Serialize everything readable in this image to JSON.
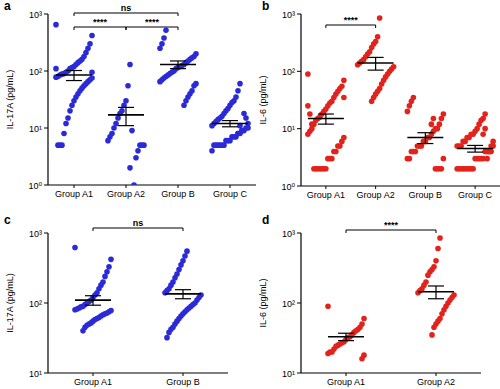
{
  "chart_data": [
    {
      "type": "scatter",
      "title": "a",
      "y_label": "IL-17A (pg/mL)",
      "color": "#2a2ad8",
      "log": "y",
      "ylim": [
        1,
        1000
      ],
      "yticks": [
        {
          "value": 1,
          "label": "10⁰"
        },
        {
          "value": 10,
          "label": "10¹"
        },
        {
          "value": 100,
          "label": "10²"
        },
        {
          "value": 1000,
          "label": "10³"
        }
      ],
      "categories": [
        "Group A1",
        "Group A2",
        "Group B",
        "Group C"
      ],
      "groups": [
        {
          "values": [
            650,
            420,
            300,
            250,
            210,
            180,
            160,
            150,
            140,
            130,
            120,
            115,
            110,
            100,
            95,
            90,
            88,
            85,
            80,
            78,
            75,
            70,
            65,
            60,
            55,
            50,
            45,
            40,
            35,
            30,
            25,
            20,
            15,
            12,
            8,
            5,
            5,
            5,
            110,
            95
          ],
          "mean": 85,
          "sem": 17
        },
        {
          "values": [
            130,
            55,
            30,
            25,
            20,
            18,
            15,
            12,
            10,
            8,
            7,
            6,
            5,
            5,
            5,
            4,
            3,
            1,
            9,
            2
          ],
          "mean": 17,
          "sem": 6
        },
        {
          "values": [
            520,
            380,
            300,
            250,
            200,
            180,
            170,
            160,
            150,
            140,
            130,
            125,
            120,
            115,
            110,
            100,
            95,
            90,
            85,
            80,
            75,
            70,
            65,
            60,
            55,
            45,
            40,
            35,
            30,
            25
          ],
          "mean": 130,
          "sem": 20
        },
        {
          "values": [
            60,
            45,
            35,
            30,
            28,
            25,
            22,
            20,
            18,
            16,
            15,
            14,
            13,
            12,
            11,
            10,
            10,
            9,
            9,
            8,
            8,
            7,
            7,
            7,
            6,
            6,
            6,
            5,
            5,
            5,
            5,
            5,
            5,
            4,
            12,
            15,
            18,
            9,
            11,
            8
          ],
          "mean": 12,
          "sem": 1.5
        }
      ],
      "annotations": [
        {
          "groups": [
            0,
            1
          ],
          "label": "****"
        },
        {
          "groups": [
            1,
            2
          ],
          "label": "****"
        },
        {
          "groups": [
            0,
            2
          ],
          "label": "ns"
        }
      ]
    },
    {
      "type": "scatter",
      "title": "b",
      "y_label": "IL-6 (pg/mL)",
      "color": "#e3231b",
      "log": "y",
      "ylim": [
        1,
        1000
      ],
      "yticks": [
        {
          "value": 1,
          "label": "10⁰"
        },
        {
          "value": 10,
          "label": "10¹"
        },
        {
          "value": 100,
          "label": "10²"
        },
        {
          "value": 1000,
          "label": "10³"
        }
      ],
      "categories": [
        "Group A1",
        "Group A2",
        "Group B",
        "Group C"
      ],
      "groups": [
        {
          "values": [
            90,
            70,
            55,
            50,
            45,
            40,
            35,
            30,
            28,
            25,
            22,
            20,
            18,
            16,
            15,
            14,
            12,
            10,
            9,
            8,
            7,
            6,
            5,
            5,
            4,
            4,
            3,
            3,
            3,
            2,
            2,
            2,
            2,
            2,
            2,
            2,
            12,
            18,
            25,
            35
          ],
          "mean": 15,
          "sem": 3
        },
        {
          "values": [
            850,
            400,
            330,
            300,
            260,
            220,
            200,
            180,
            160,
            150,
            140,
            130,
            120,
            110,
            100,
            90,
            80,
            70,
            60,
            50,
            45,
            40,
            35,
            30
          ],
          "mean": 140,
          "sem": 35
        },
        {
          "values": [
            35,
            30,
            25,
            20,
            18,
            15,
            12,
            10,
            10,
            9,
            8,
            7,
            7,
            6,
            6,
            5,
            5,
            5,
            4,
            4,
            4,
            3,
            3,
            3,
            2,
            2,
            2,
            2,
            15,
            12
          ],
          "mean": 7,
          "sem": 1.5
        },
        {
          "values": [
            18,
            15,
            14,
            12,
            10,
            9,
            8,
            8,
            7,
            7,
            6,
            6,
            5,
            5,
            5,
            5,
            4,
            4,
            4,
            4,
            3,
            3,
            3,
            3,
            3,
            2,
            2,
            2,
            2,
            2,
            2,
            2,
            2,
            2,
            6,
            5,
            4,
            3,
            10,
            8
          ],
          "mean": 4.5,
          "sem": 0.6
        }
      ],
      "annotations": [
        {
          "groups": [
            0,
            1
          ],
          "label": "****"
        }
      ]
    },
    {
      "type": "scatter",
      "title": "c",
      "y_label": "IL-17A (pg/mL)",
      "color": "#2a2ad8",
      "log": "y",
      "ylim": [
        10,
        1000
      ],
      "yticks": [
        {
          "value": 10,
          "label": "10¹"
        },
        {
          "value": 100,
          "label": "10²"
        },
        {
          "value": 1000,
          "label": "10³"
        }
      ],
      "categories": [
        "Group A1",
        "Group B"
      ],
      "groups": [
        {
          "values": [
            620,
            420,
            330,
            280,
            240,
            200,
            180,
            160,
            140,
            130,
            120,
            110,
            105,
            100,
            95,
            90,
            88,
            85,
            82,
            80,
            78,
            75,
            72,
            70,
            68,
            65,
            62,
            60,
            58,
            55,
            52,
            50,
            48,
            45,
            40
          ],
          "mean": 110,
          "sem": 17
        },
        {
          "values": [
            550,
            470,
            400,
            350,
            300,
            260,
            230,
            200,
            180,
            160,
            150,
            140,
            130,
            120,
            110,
            100,
            95,
            90,
            85,
            80,
            75,
            70,
            65,
            60,
            55,
            50,
            45,
            42,
            38,
            32
          ],
          "mean": 135,
          "sem": 20
        }
      ],
      "annotations": [
        {
          "groups": [
            0,
            1
          ],
          "label": "ns"
        }
      ]
    },
    {
      "type": "scatter",
      "title": "d",
      "y_label": "IL-6 (pg/mL)",
      "color": "#e3231b",
      "log": "y",
      "ylim": [
        10,
        1000
      ],
      "yticks": [
        {
          "value": 10,
          "label": "10¹"
        },
        {
          "value": 100,
          "label": "10²"
        },
        {
          "value": 1000,
          "label": "10³"
        }
      ],
      "categories": [
        "Group A1",
        "Group A2"
      ],
      "groups": [
        {
          "values": [
            90,
            60,
            50,
            45,
            42,
            40,
            38,
            35,
            33,
            32,
            30,
            28,
            27,
            26,
            25,
            24,
            22,
            20,
            20,
            19,
            18,
            16
          ],
          "mean": 33,
          "sem": 4
        },
        {
          "values": [
            850,
            600,
            400,
            330,
            300,
            280,
            250,
            200,
            180,
            160,
            150,
            140,
            130,
            120,
            110,
            100,
            90,
            80,
            70,
            60,
            55,
            50,
            45,
            35
          ],
          "mean": 145,
          "sem": 30
        }
      ],
      "annotations": [
        {
          "groups": [
            0,
            1
          ],
          "label": "****"
        }
      ]
    }
  ]
}
